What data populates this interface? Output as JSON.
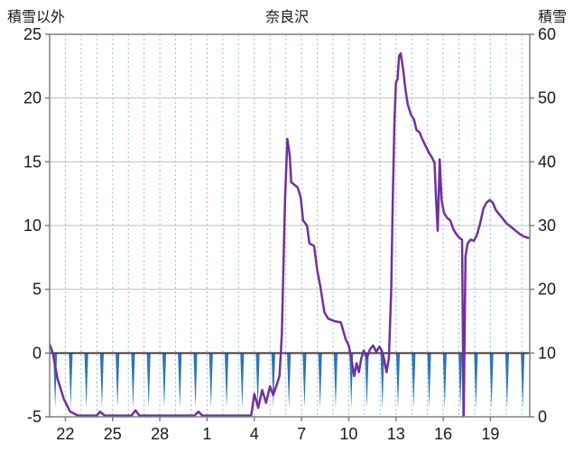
{
  "header": {
    "left_axis_label": "積雪以外",
    "title": "奈良沢",
    "right_axis_label": "積雪"
  },
  "chart_data": {
    "type": "line",
    "title": "奈良沢",
    "left_axis": {
      "label": "積雪以外",
      "min": -5,
      "max": 25,
      "ticks": [
        25,
        20,
        15,
        10,
        5,
        0,
        -5
      ]
    },
    "right_axis": {
      "label": "積雪",
      "min": 0,
      "max": 60,
      "ticks": [
        60,
        50,
        40,
        30,
        20,
        10,
        0
      ]
    },
    "x_axis": {
      "min": 0,
      "max": 30.5,
      "tick_positions": [
        1,
        4,
        7,
        10,
        13,
        16,
        19,
        22,
        25,
        28
      ],
      "tick_labels": [
        "22",
        "25",
        "28",
        "1",
        "4",
        "7",
        "10",
        "13",
        "16",
        "19"
      ]
    },
    "grid": {
      "h_color": "#c0c0c0",
      "v_color": "#8fc1e3",
      "zero_color": "#404040",
      "border_color": "#808080"
    },
    "series": [
      {
        "name": "積雪以外",
        "render": "line",
        "axis": "left",
        "color": "#7030a0",
        "points": [
          [
            0,
            0.7
          ],
          [
            0.2,
            0
          ],
          [
            0.5,
            -2
          ],
          [
            0.9,
            -3.6
          ],
          [
            1.3,
            -4.6
          ],
          [
            1.8,
            -4.9
          ],
          [
            3,
            -4.9
          ],
          [
            3.2,
            -4.6
          ],
          [
            3.5,
            -4.9
          ],
          [
            5.2,
            -4.9
          ],
          [
            5.45,
            -4.5
          ],
          [
            5.7,
            -4.9
          ],
          [
            9.2,
            -4.9
          ],
          [
            9.45,
            -4.6
          ],
          [
            9.7,
            -4.9
          ],
          [
            12.8,
            -4.9
          ],
          [
            13,
            -3.2
          ],
          [
            13.25,
            -4.3
          ],
          [
            13.5,
            -2.9
          ],
          [
            13.75,
            -3.9
          ],
          [
            14,
            -2.6
          ],
          [
            14.2,
            -3.3
          ],
          [
            14.45,
            -2.4
          ],
          [
            14.6,
            -1.8
          ],
          [
            14.75,
            1.5
          ],
          [
            14.95,
            12
          ],
          [
            15.1,
            16.8
          ],
          [
            15.25,
            15.5
          ],
          [
            15.35,
            13.4
          ],
          [
            15.55,
            13.2
          ],
          [
            15.75,
            13
          ],
          [
            15.95,
            12.2
          ],
          [
            16.1,
            10.4
          ],
          [
            16.35,
            10
          ],
          [
            16.5,
            8.6
          ],
          [
            16.8,
            8.4
          ],
          [
            17,
            6.5
          ],
          [
            17.2,
            5.2
          ],
          [
            17.45,
            3.2
          ],
          [
            17.7,
            2.7
          ],
          [
            18.1,
            2.5
          ],
          [
            18.5,
            2.4
          ],
          [
            18.8,
            1.1
          ],
          [
            19,
            0.6
          ],
          [
            19.2,
            -0.7
          ],
          [
            19.35,
            -1.8
          ],
          [
            19.5,
            -0.8
          ],
          [
            19.65,
            -1.5
          ],
          [
            19.8,
            -0.4
          ],
          [
            19.95,
            0.2
          ],
          [
            20.15,
            -0.4
          ],
          [
            20.35,
            0.3
          ],
          [
            20.55,
            0.6
          ],
          [
            20.75,
            0.1
          ],
          [
            20.95,
            0.5
          ],
          [
            21.1,
            0.2
          ],
          [
            21.25,
            -0.5
          ],
          [
            21.4,
            -1.5
          ],
          [
            21.55,
            -0.4
          ],
          [
            21.7,
            5
          ],
          [
            21.8,
            12
          ],
          [
            21.9,
            18
          ],
          [
            22,
            21.2
          ],
          [
            22.1,
            21.5
          ],
          [
            22.2,
            23.3
          ],
          [
            22.3,
            23.5
          ],
          [
            22.45,
            22.3
          ],
          [
            22.6,
            20.7
          ],
          [
            22.75,
            19.5
          ],
          [
            22.95,
            18.7
          ],
          [
            23.15,
            18.3
          ],
          [
            23.3,
            17.5
          ],
          [
            23.5,
            17.3
          ],
          [
            23.7,
            16.7
          ],
          [
            23.9,
            16.2
          ],
          [
            24.1,
            15.7
          ],
          [
            24.3,
            15.3
          ],
          [
            24.45,
            14.9
          ],
          [
            24.55,
            12
          ],
          [
            24.65,
            9.6
          ],
          [
            24.78,
            15.2
          ],
          [
            24.9,
            12
          ],
          [
            25.05,
            11
          ],
          [
            25.25,
            10.6
          ],
          [
            25.45,
            10.4
          ],
          [
            25.65,
            9.7
          ],
          [
            25.85,
            9.3
          ],
          [
            26.05,
            9
          ],
          [
            26.2,
            8.9
          ],
          [
            26.3,
            -5.6
          ],
          [
            26.42,
            7.6
          ],
          [
            26.55,
            8.6
          ],
          [
            26.75,
            8.9
          ],
          [
            26.95,
            8.8
          ],
          [
            27.15,
            9.3
          ],
          [
            27.35,
            10.2
          ],
          [
            27.55,
            11.3
          ],
          [
            27.75,
            11.8
          ],
          [
            27.95,
            12
          ],
          [
            28.15,
            11.8
          ],
          [
            28.35,
            11.2
          ],
          [
            28.55,
            10.9
          ],
          [
            28.75,
            10.6
          ],
          [
            29,
            10.2
          ],
          [
            29.3,
            9.9
          ],
          [
            29.6,
            9.6
          ],
          [
            29.9,
            9.3
          ],
          [
            30.2,
            9.1
          ],
          [
            30.5,
            9
          ]
        ]
      },
      {
        "name": "積雪",
        "render": "spikes",
        "axis": "left",
        "color": "#2e75b6",
        "spikes": {
          "start": 0.35,
          "step": 0.99,
          "count": 31,
          "top": 0,
          "bottom": -4.3,
          "half_width": 0.12
        }
      }
    ]
  }
}
